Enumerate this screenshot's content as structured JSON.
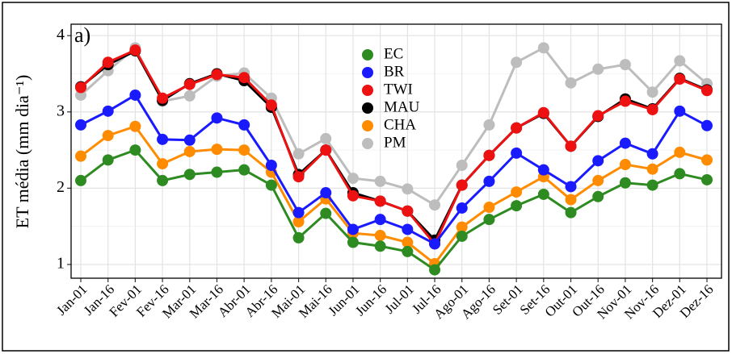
{
  "chart_data": {
    "type": "line",
    "annotation": "a)",
    "ylabel": "ET média (mm dia⁻¹)",
    "categories": [
      "Jan-01",
      "Jan-16",
      "Fev-01",
      "Fev-16",
      "Mar-01",
      "Mar-16",
      "Abr-01",
      "Abr-16",
      "Mai-01",
      "Mai-16",
      "Jun-01",
      "Jun-16",
      "Jul-01",
      "Jul-16",
      "Ago-01",
      "Ago-16",
      "Set-01",
      "Set-16",
      "Out-01",
      "Out-16",
      "Nov-01",
      "Nov-16",
      "Dez-01",
      "Dez-16"
    ],
    "series": [
      {
        "name": "EC",
        "color": "#2e8b22",
        "values": [
          2.1,
          2.37,
          2.5,
          2.1,
          2.18,
          2.21,
          2.24,
          2.04,
          1.35,
          1.67,
          1.29,
          1.24,
          1.17,
          0.93,
          1.37,
          1.59,
          1.77,
          1.92,
          1.68,
          1.89,
          2.07,
          2.04,
          2.19,
          2.11
        ]
      },
      {
        "name": "BR",
        "color": "#1a1aff",
        "values": [
          2.83,
          3.01,
          3.22,
          2.64,
          2.63,
          2.92,
          2.83,
          2.3,
          1.68,
          1.94,
          1.46,
          1.59,
          1.46,
          1.27,
          1.74,
          2.09,
          2.46,
          2.24,
          2.02,
          2.36,
          2.59,
          2.45,
          3.01,
          2.82
        ]
      },
      {
        "name": "TWI",
        "color": "#ee1111",
        "values": [
          3.32,
          3.65,
          3.81,
          3.18,
          3.36,
          3.49,
          3.45,
          3.09,
          2.15,
          2.5,
          1.9,
          1.83,
          1.7,
          1.27,
          2.04,
          2.43,
          2.79,
          2.99,
          2.55,
          2.95,
          3.14,
          3.03,
          3.43,
          3.28
        ]
      },
      {
        "name": "MAU",
        "color": "#000000",
        "values": [
          3.33,
          3.62,
          3.8,
          3.15,
          3.37,
          3.5,
          3.41,
          3.06,
          2.18,
          2.5,
          1.94,
          1.83,
          1.7,
          1.32,
          2.04,
          2.43,
          2.79,
          2.98,
          2.55,
          2.94,
          3.17,
          3.04,
          3.44,
          3.29
        ]
      },
      {
        "name": "CHA",
        "color": "#ff8c00",
        "values": [
          2.42,
          2.69,
          2.81,
          2.32,
          2.48,
          2.51,
          2.5,
          2.21,
          1.56,
          1.86,
          1.41,
          1.38,
          1.29,
          1.01,
          1.49,
          1.75,
          1.95,
          2.15,
          1.85,
          2.1,
          2.31,
          2.25,
          2.47,
          2.37
        ]
      },
      {
        "name": "PM",
        "color": "#bdbdbd",
        "values": [
          3.22,
          3.54,
          3.84,
          3.14,
          3.21,
          3.47,
          3.51,
          3.18,
          2.45,
          2.65,
          2.13,
          2.09,
          1.99,
          1.78,
          2.3,
          2.83,
          3.65,
          3.84,
          3.38,
          3.56,
          3.62,
          3.26,
          3.67,
          3.37
        ]
      }
    ],
    "ylim": [
      0.82,
      4.15
    ],
    "yticks": [
      1,
      2,
      3,
      4
    ],
    "grid": true
  }
}
